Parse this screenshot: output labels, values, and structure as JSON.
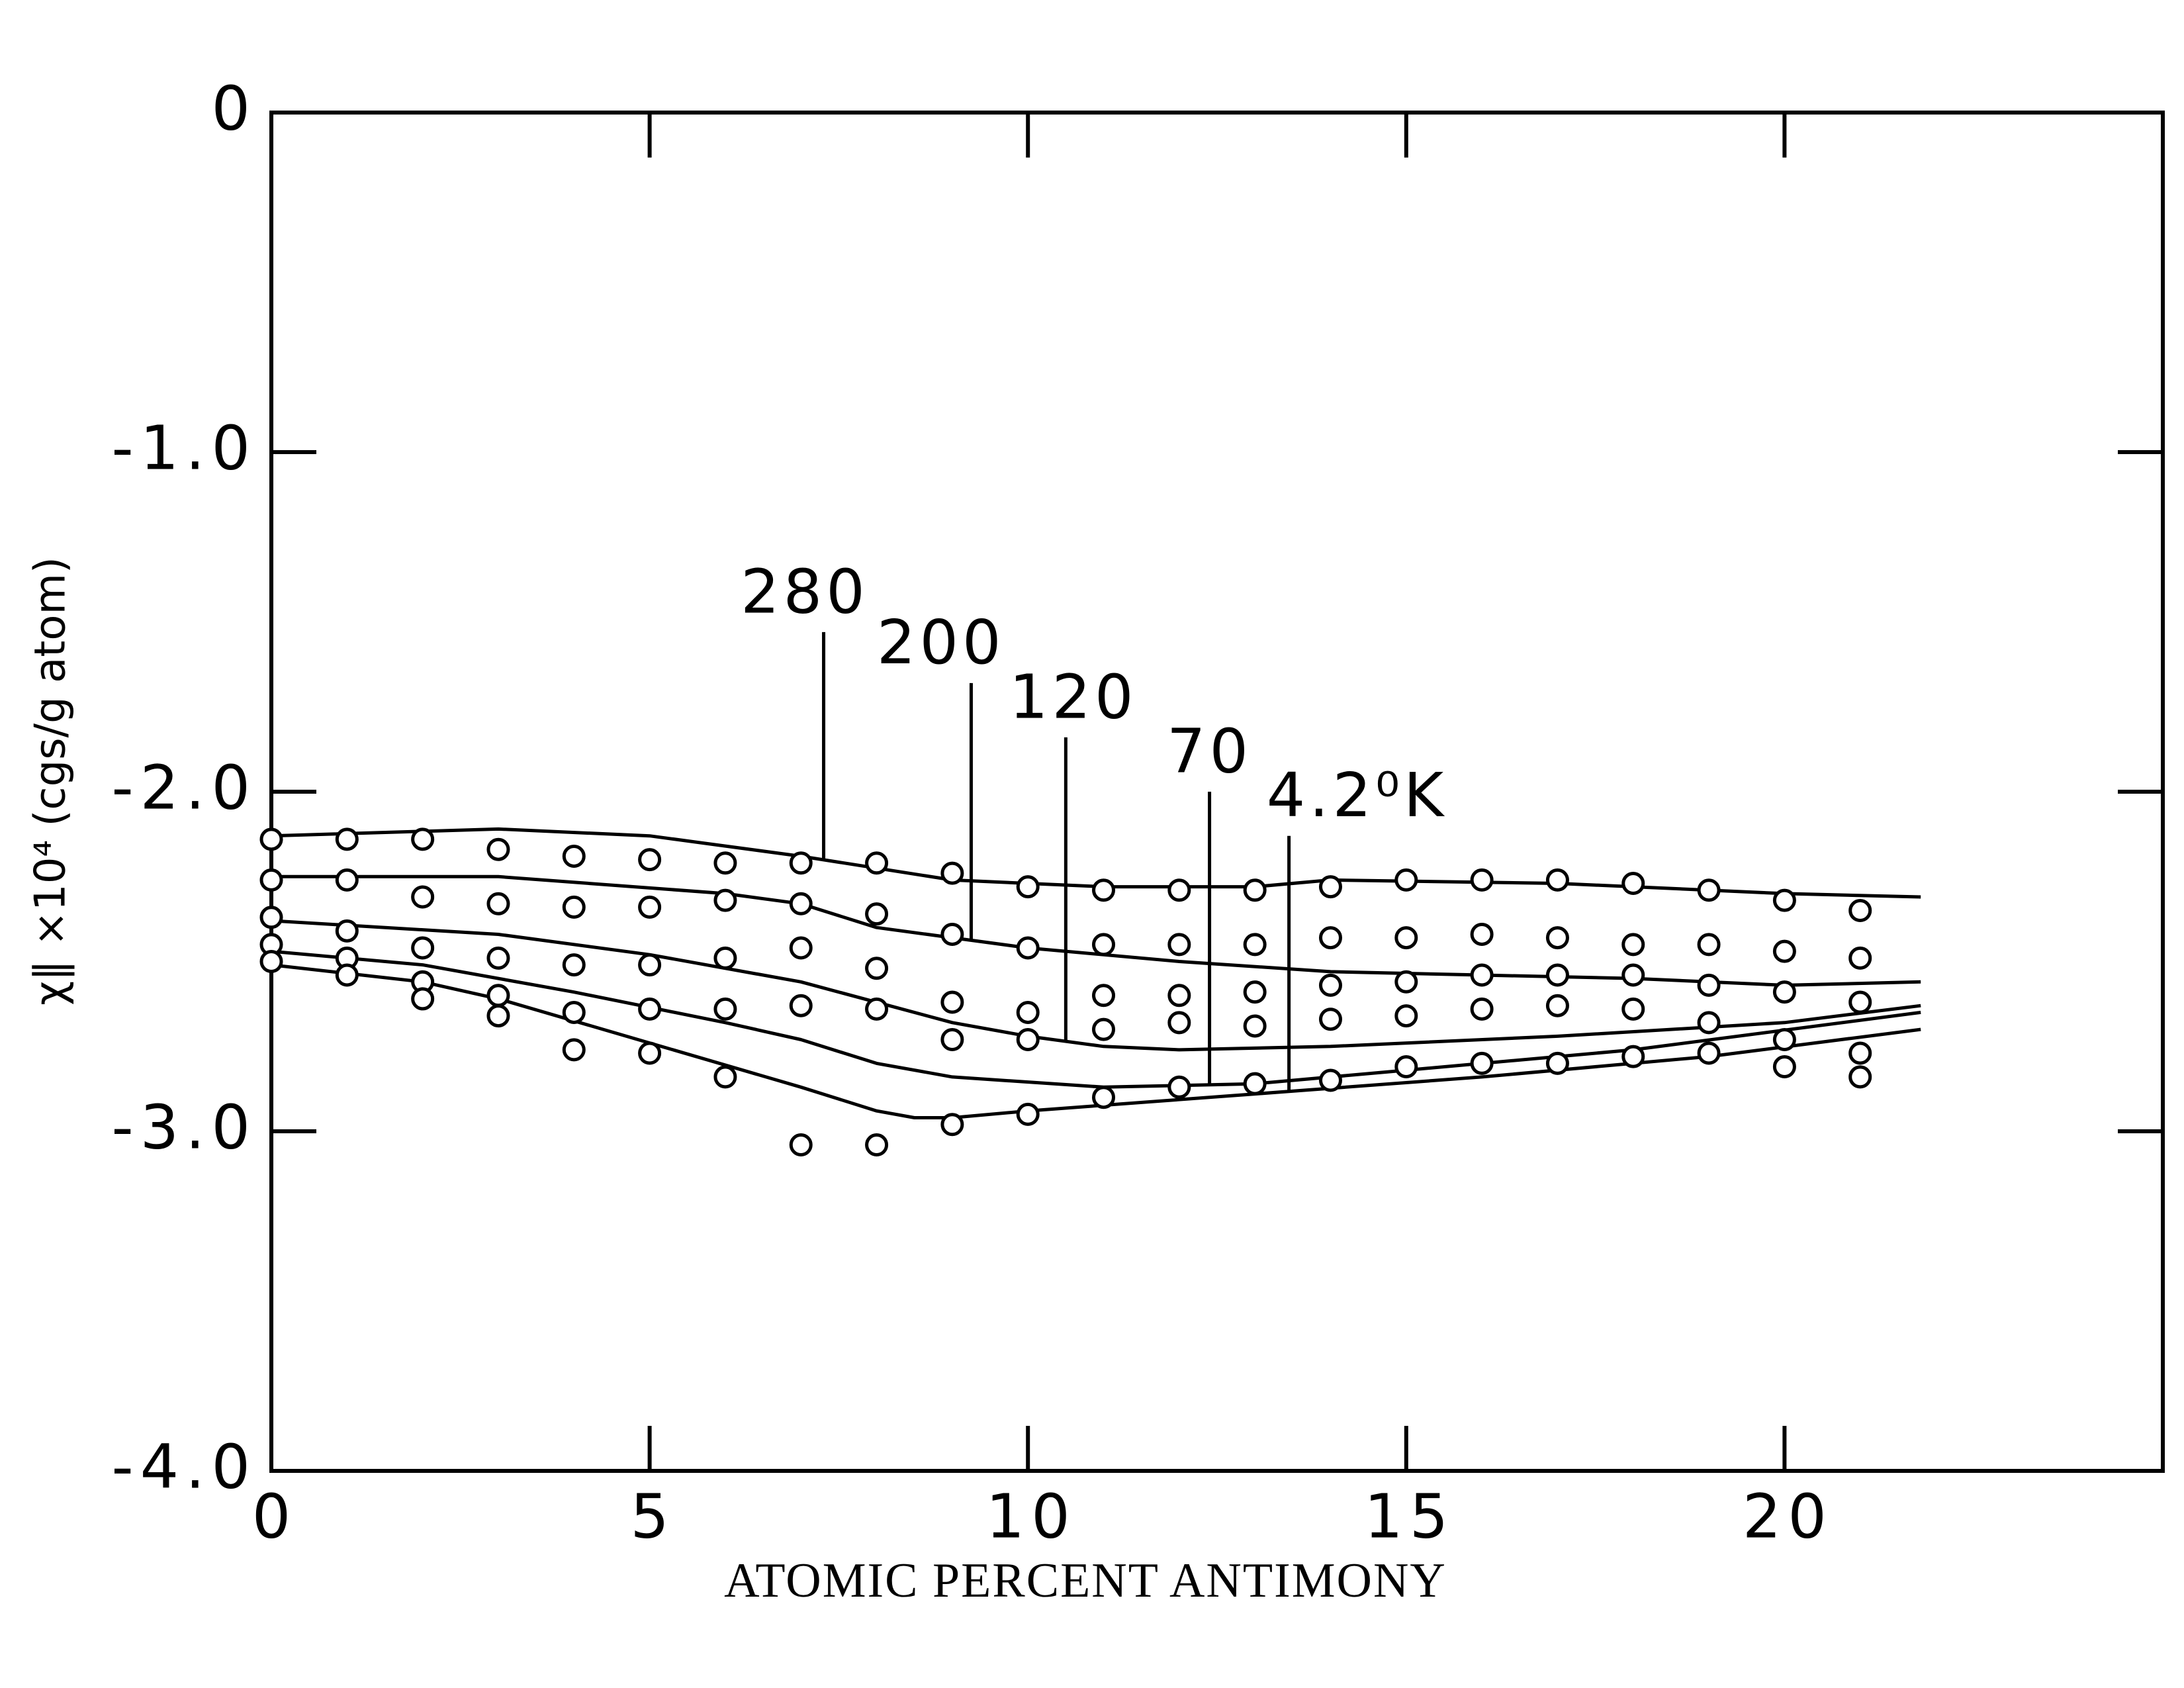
{
  "chart_data": {
    "type": "line",
    "x_label": "ATOMIC PERCENT ANTIMONY",
    "y_label": "χ‖ ×10⁴ (cgs/g atom)",
    "xlim": [
      0,
      25
    ],
    "ylim": [
      -4,
      0
    ],
    "xticks": [
      0,
      5,
      10,
      15,
      20
    ],
    "yticks": [
      0,
      {
        "value": -1,
        "label": "-1.0"
      },
      {
        "value": -2,
        "label": "-2.0"
      },
      {
        "value": -3,
        "label": "-3.0"
      },
      {
        "value": -4,
        "label": "-4.0"
      }
    ],
    "series": [
      {
        "name": "280",
        "color": "#000000",
        "x": [
          0,
          3,
          5,
          7,
          9,
          11,
          13,
          14,
          17,
          20,
          21.8
        ],
        "values": [
          -2.13,
          -2.11,
          -2.13,
          -2.19,
          -2.26,
          -2.28,
          -2.28,
          -2.26,
          -2.27,
          -2.3,
          -2.31
        ]
      },
      {
        "name": "200",
        "color": "#000000",
        "x": [
          0,
          3,
          6,
          7,
          8,
          10,
          12,
          14,
          16,
          18,
          20,
          21.8
        ],
        "values": [
          -2.25,
          -2.25,
          -2.3,
          -2.33,
          -2.4,
          -2.46,
          -2.5,
          -2.53,
          -2.54,
          -2.55,
          -2.57,
          -2.56
        ]
      },
      {
        "name": "120",
        "color": "#000000",
        "x": [
          0,
          3,
          5,
          7,
          8,
          9,
          10,
          11,
          12,
          14,
          17,
          20,
          21.8
        ],
        "values": [
          -2.38,
          -2.42,
          -2.48,
          -2.56,
          -2.62,
          -2.68,
          -2.72,
          -2.75,
          -2.76,
          -2.75,
          -2.72,
          -2.68,
          -2.63
        ]
      },
      {
        "name": "70",
        "color": "#000000",
        "x": [
          0,
          2,
          4,
          6,
          7,
          8,
          9,
          11,
          13,
          15,
          18,
          21.8
        ],
        "values": [
          -2.47,
          -2.51,
          -2.59,
          -2.68,
          -2.73,
          -2.8,
          -2.84,
          -2.87,
          -2.86,
          -2.82,
          -2.76,
          -2.65
        ]
      },
      {
        "name": "4.2⁰K",
        "color": "#000000",
        "x": [
          0,
          2,
          3,
          5,
          7,
          8,
          8.5,
          9,
          10,
          13,
          16,
          19,
          21.8
        ],
        "values": [
          -2.51,
          -2.56,
          -2.61,
          -2.74,
          -2.87,
          -2.94,
          -2.96,
          -2.96,
          -2.94,
          -2.89,
          -2.84,
          -2.78,
          -2.7
        ]
      }
    ],
    "points": {
      "x": [
        0,
        1,
        2,
        3,
        4,
        5,
        6,
        7,
        8,
        9,
        10,
        11,
        12,
        13,
        14,
        15,
        16,
        17,
        18,
        19,
        20,
        21
      ],
      "y": [
        [
          -2.14,
          -2.26,
          -2.37,
          -2.45,
          -2.5
        ],
        [
          -2.14,
          -2.26,
          -2.41,
          -2.49,
          -2.54
        ],
        [
          -2.14,
          -2.31,
          -2.46,
          -2.56,
          -2.61
        ],
        [
          -2.17,
          -2.33,
          -2.49,
          -2.6,
          -2.66
        ],
        [
          -2.19,
          -2.34,
          -2.51,
          -2.65,
          -2.76
        ],
        [
          -2.2,
          -2.34,
          -2.51,
          -2.64,
          -2.77
        ],
        [
          -2.21,
          -2.32,
          -2.49,
          -2.64,
          -2.84
        ],
        [
          -2.21,
          -2.33,
          -2.46,
          -2.63,
          -3.04
        ],
        [
          -2.21,
          -2.36,
          -2.52,
          -2.64,
          -3.04
        ],
        [
          -2.24,
          -2.42,
          -2.62,
          -2.73,
          -2.98
        ],
        [
          -2.28,
          -2.46,
          -2.65,
          -2.73,
          -2.95
        ],
        [
          -2.29,
          -2.45,
          -2.6,
          -2.7,
          -2.9
        ],
        [
          -2.29,
          -2.45,
          -2.6,
          -2.68,
          -2.87
        ],
        [
          -2.29,
          -2.45,
          -2.59,
          -2.69,
          -2.86
        ],
        [
          -2.28,
          -2.43,
          -2.57,
          -2.67,
          -2.85
        ],
        [
          -2.26,
          -2.43,
          -2.56,
          -2.66,
          -2.81
        ],
        [
          -2.26,
          -2.42,
          -2.54,
          -2.64,
          -2.8
        ],
        [
          -2.26,
          -2.43,
          -2.54,
          -2.63,
          -2.8
        ],
        [
          -2.27,
          -2.45,
          -2.54,
          -2.64,
          -2.78
        ],
        [
          -2.29,
          -2.45,
          -2.57,
          -2.68,
          -2.77
        ],
        [
          -2.32,
          -2.47,
          -2.59,
          -2.73,
          -2.81
        ],
        [
          -2.35,
          -2.49,
          -2.62,
          -2.77,
          -2.84
        ]
      ]
    }
  }
}
